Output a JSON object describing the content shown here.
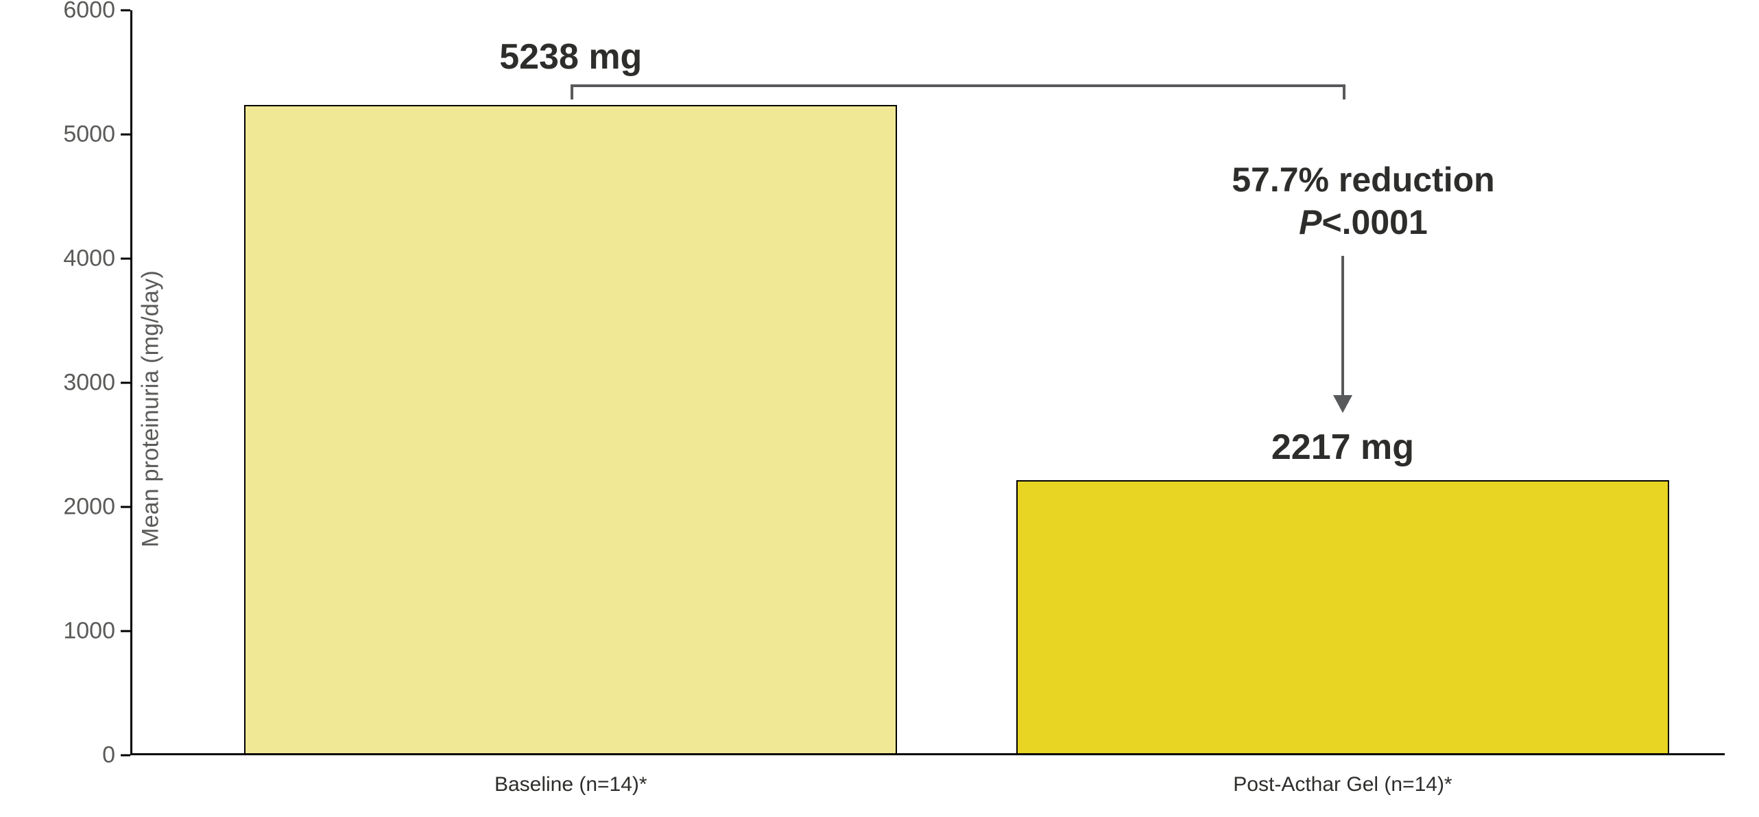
{
  "chart": {
    "type": "bar",
    "ylabel": "Mean proteinuria (mg/day)",
    "ylabel_fontsize": 34,
    "ylabel_color": "#5a5a58",
    "ylim": [
      0,
      6000
    ],
    "yticks": [
      0,
      1000,
      2000,
      3000,
      4000,
      5000,
      6000
    ],
    "ytick_fontsize": 34,
    "ytick_color": "#5a5a58",
    "axis_color": "#000000",
    "axis_width": 3,
    "background_color": "#ffffff",
    "bar_border_color": "#000000",
    "bar_border_width": 2,
    "bar_width": 0.41,
    "bars": [
      {
        "category": "Baseline (n=14)*",
        "value": 5238,
        "display_value": "5238 mg",
        "fill": "#f0e895",
        "x_center_frac": 0.275
      },
      {
        "category": "Post-Acthar Gel (n=14)*",
        "value": 2217,
        "display_value": "2217 mg",
        "fill": "#e8d422",
        "x_center_frac": 0.76
      }
    ],
    "xlabel_fontsize": 30,
    "value_label_fontsize": 52,
    "value_label_color": "#2d2d2b",
    "annotation": {
      "line1": "57.7% reduction",
      "line2_pre": "P",
      "line2_post": "<.0001",
      "fontsize": 50,
      "color": "#2d2d2b",
      "bracket_color": "#58595b",
      "bracket_width": 4,
      "arrow_color": "#58595b"
    }
  }
}
